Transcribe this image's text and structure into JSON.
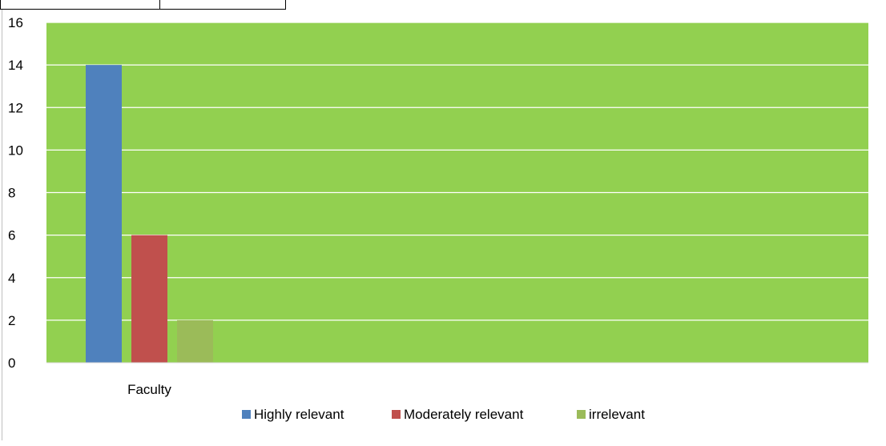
{
  "chart_data": {
    "type": "bar",
    "categories": [
      "Faculty"
    ],
    "series": [
      {
        "name": "Highly relevant",
        "values": [
          14
        ]
      },
      {
        "name": "Moderately relevant",
        "values": [
          6
        ]
      },
      {
        "name": "irrelevant",
        "values": [
          2
        ]
      }
    ],
    "title": "",
    "xlabel": "",
    "ylabel": "",
    "ylim": [
      0,
      16
    ],
    "y_ticks": [
      "0",
      "2",
      "4",
      "6",
      "8",
      "10",
      "12",
      "14",
      "16"
    ],
    "grid": true,
    "legend_position": "bottom",
    "colors": {
      "plot_background": "#92d050",
      "gridline": "#ffffff",
      "series": [
        "#4f81bd",
        "#c0504d",
        "#9bbb59"
      ]
    }
  }
}
